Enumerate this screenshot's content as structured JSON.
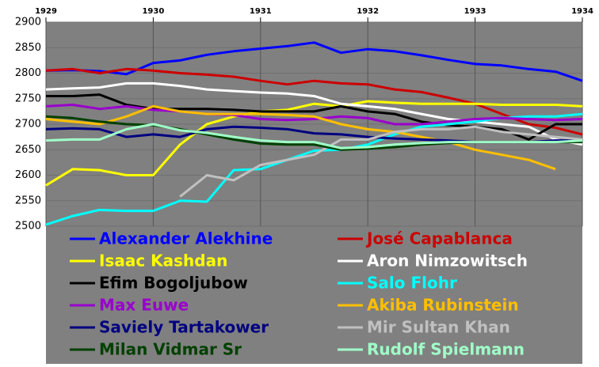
{
  "chart_data": {
    "type": "line",
    "x": [
      1929,
      1929.25,
      1929.5,
      1929.75,
      1930,
      1930.25,
      1930.5,
      1930.75,
      1931,
      1931.25,
      1931.5,
      1931.75,
      1932,
      1932.25,
      1932.5,
      1932.75,
      1933,
      1933.25,
      1933.5,
      1933.75,
      1934
    ],
    "xlim": [
      1929,
      1934
    ],
    "xticks": [
      1929,
      1930,
      1931,
      1932,
      1933,
      1934
    ],
    "ylim": [
      2500,
      2900
    ],
    "yticks": [
      2500,
      2550,
      2600,
      2650,
      2700,
      2750,
      2800,
      2850,
      2900
    ],
    "grid": true,
    "series": [
      {
        "name": "Alexander Alekhine",
        "color": "#0000ff",
        "values": [
          2805,
          2806,
          2804,
          2798,
          2820,
          2825,
          2836,
          2843,
          2848,
          2853,
          2860,
          2840,
          2847,
          2843,
          2835,
          2826,
          2818,
          2815,
          2808,
          2803,
          2785
        ]
      },
      {
        "name": "José Capablanca",
        "color": "#cc0000",
        "values": [
          2805,
          2808,
          2800,
          2808,
          2805,
          2800,
          2797,
          2793,
          2785,
          2778,
          2785,
          2780,
          2778,
          2768,
          2763,
          2752,
          2740,
          2720,
          2700,
          2693,
          2680
        ]
      },
      {
        "name": "Isaac Kashdan",
        "color": "#ffff00",
        "values": [
          2580,
          2612,
          2610,
          2600,
          2600,
          2660,
          2700,
          2715,
          2725,
          2728,
          2740,
          2735,
          2745,
          2742,
          2740,
          2740,
          2740,
          2738,
          2738,
          2738,
          2735
        ]
      },
      {
        "name": "Aron Nimzowitsch",
        "color": "#ffffff",
        "values": [
          2768,
          2770,
          2772,
          2780,
          2780,
          2775,
          2768,
          2765,
          2762,
          2760,
          2755,
          2740,
          2735,
          2730,
          2720,
          2710,
          2705,
          2700,
          2695,
          2670,
          2660
        ]
      },
      {
        "name": "Efim Bogoljubow",
        "color": "#000000",
        "values": [
          2755,
          2755,
          2758,
          2738,
          2730,
          2730,
          2730,
          2728,
          2725,
          2725,
          2725,
          2735,
          2725,
          2720,
          2705,
          2698,
          2695,
          2690,
          2670,
          2700,
          2700
        ]
      },
      {
        "name": "Salo Flohr",
        "color": "#00ffff",
        "values": [
          2503,
          2520,
          2532,
          2530,
          2530,
          2550,
          2548,
          2610,
          2612,
          2630,
          2648,
          2650,
          2660,
          2680,
          2695,
          2700,
          2705,
          2712,
          2715,
          2715,
          2720
        ]
      },
      {
        "name": "Max Euwe",
        "color": "#9900cc",
        "values": [
          2735,
          2738,
          2730,
          2735,
          2728,
          2725,
          2720,
          2718,
          2710,
          2708,
          2710,
          2715,
          2712,
          2700,
          2700,
          2705,
          2710,
          2712,
          2710,
          2708,
          2710
        ]
      },
      {
        "name": "Akiba Rubinstein",
        "color": "#ffbf00",
        "values": [
          2710,
          2705,
          2700,
          2715,
          2735,
          2725,
          2720,
          2720,
          2720,
          2718,
          2715,
          2700,
          2690,
          2685,
          2675,
          2665,
          2650,
          2640,
          2630,
          2612,
          null
        ]
      },
      {
        "name": "Saviely Tartakower",
        "color": "#000080",
        "values": [
          2690,
          2692,
          2690,
          2675,
          2680,
          2675,
          2690,
          2695,
          2693,
          2690,
          2682,
          2680,
          2675,
          2672,
          2670,
          2668,
          2665,
          2665,
          2665,
          2668,
          2668
        ]
      },
      {
        "name": "Mir Sultan Khan",
        "color": "#c0c0c0",
        "values": [
          null,
          null,
          null,
          null,
          null,
          2558,
          2600,
          2590,
          2620,
          2630,
          2640,
          2670,
          2670,
          2685,
          2690,
          2690,
          2695,
          2685,
          2680,
          2675,
          2670
        ]
      },
      {
        "name": "Milan Vidmar Sr",
        "color": "#004000",
        "values": [
          2715,
          2712,
          2705,
          2700,
          2698,
          2690,
          2680,
          2670,
          2662,
          2660,
          2660,
          2650,
          2652,
          2655,
          2660,
          2663,
          2665,
          2665,
          2665,
          2665,
          2665
        ]
      },
      {
        "name": "Rudolf Spielmann",
        "color": "#a0ffc8",
        "values": [
          2668,
          2670,
          2670,
          2690,
          2700,
          2688,
          2683,
          2675,
          2668,
          2665,
          2665,
          2653,
          2655,
          2660,
          2663,
          2665,
          2665,
          2665,
          2665,
          2665,
          2668
        ]
      }
    ]
  }
}
